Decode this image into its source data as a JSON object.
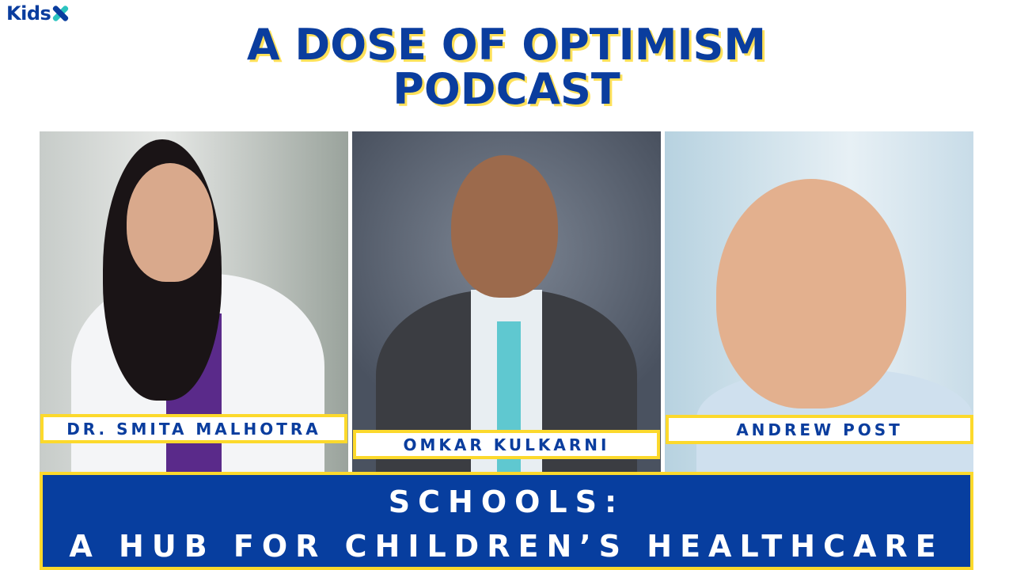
{
  "brand": {
    "logo_text": "Kids",
    "logo_mark": "X"
  },
  "title": {
    "line1": "A DOSE OF OPTIMISM",
    "line2": "PODCAST"
  },
  "guests": [
    {
      "name": "DR. SMITA MALHOTRA"
    },
    {
      "name": "OMKAR KULKARNI"
    },
    {
      "name": "ANDREW POST"
    }
  ],
  "episode": {
    "line1": "SCHOOLS:",
    "line2": "A HUB FOR CHILDREN’S HEALTHCARE"
  },
  "colors": {
    "brand_blue": "#073e9f",
    "accent_yellow": "#fcd92c",
    "accent_teal": "#2bc4c0"
  }
}
